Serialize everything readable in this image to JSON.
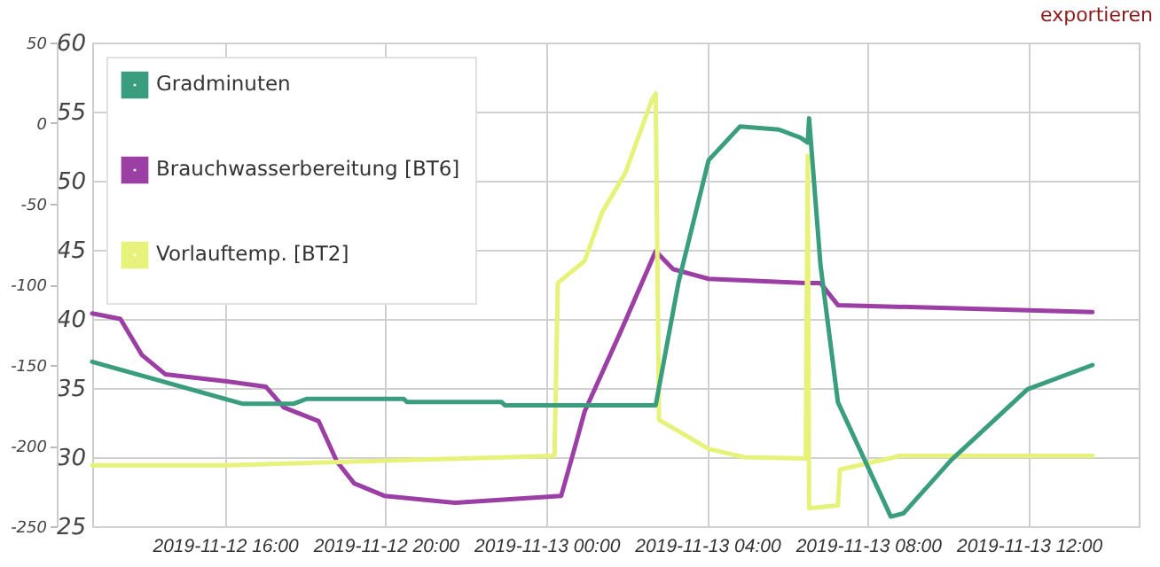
{
  "chart_data": {
    "type": "line",
    "annotations": [
      "exportieren"
    ],
    "xlim": [
      "2019-11-12T12:42",
      "2019-11-13T14:44"
    ],
    "xticks": [
      {
        "value": "2019-11-12T16:00",
        "label": "2019-11-12 16:00"
      },
      {
        "value": "2019-11-12T20:00",
        "label": "2019-11-12 20:00"
      },
      {
        "value": "2019-11-13T00:00",
        "label": "2019-11-13 00:00"
      },
      {
        "value": "2019-11-13T04:00",
        "label": "2019-11-13 04:00"
      },
      {
        "value": "2019-11-13T08:00",
        "label": "2019-11-13 08:00"
      },
      {
        "value": "2019-11-13T12:00",
        "label": "2019-11-13 12:00"
      }
    ],
    "ylim": [
      25,
      60
    ],
    "yticks": [
      25,
      30,
      35,
      40,
      45,
      50,
      55,
      60
    ],
    "y2lim": [
      -250,
      50
    ],
    "y2ticks": [
      -250,
      -200,
      -150,
      -100,
      -50,
      0,
      50
    ],
    "grid": true,
    "legend": "top left",
    "line_style": "solid",
    "series": [
      {
        "name": "Gradminuten",
        "color": "#3a9e7e",
        "axis": "y2",
        "x": [
          "2019-11-12T12:42",
          "2019-11-12T16:26",
          "2019-11-12T17:43",
          "2019-11-12T18:02",
          "2019-11-12T20:27",
          "2019-11-12T20:32",
          "2019-11-12T22:53",
          "2019-11-12T22:58",
          "2019-11-13T02:43",
          "2019-11-13T03:17",
          "2019-11-13T04:02",
          "2019-11-13T04:49",
          "2019-11-13T05:47",
          "2019-11-13T06:19",
          "2019-11-13T06:30",
          "2019-11-13T06:32",
          "2019-11-13T06:49",
          "2019-11-13T07:15",
          "2019-11-13T08:34",
          "2019-11-13T08:53",
          "2019-11-13T10:04",
          "2019-11-13T11:58",
          "2019-11-13T13:35"
        ],
        "values": [
          -148,
          -174,
          -174,
          -171,
          -171,
          -173,
          -173,
          -175,
          -175,
          -99,
          -23,
          -2,
          -4,
          -9,
          -12,
          3,
          -88,
          -173,
          -244,
          -242,
          -209,
          -165,
          -150
        ]
      },
      {
        "name": "Brauchwasserbereitung [BT6]",
        "color": "#9b3fa5",
        "x": [
          "2019-11-12T12:42",
          "2019-11-12T13:24",
          "2019-11-12T13:56",
          "2019-11-12T14:31",
          "2019-11-12T16:00",
          "2019-11-12T17:01",
          "2019-11-12T17:28",
          "2019-11-12T18:20",
          "2019-11-12T18:47",
          "2019-11-12T19:13",
          "2019-11-12T19:58",
          "2019-11-12T21:44",
          "2019-11-13T00:22",
          "2019-11-13T00:44",
          "2019-11-13T00:57",
          "2019-11-13T01:50",
          "2019-11-13T02:43",
          "2019-11-13T03:09",
          "2019-11-13T04:02",
          "2019-11-13T06:27",
          "2019-11-13T06:49",
          "2019-11-13T07:15",
          "2019-11-13T13:35"
        ],
        "values": [
          40.4,
          40.0,
          37.4,
          36.0,
          35.5,
          35.1,
          33.6,
          32.6,
          29.7,
          28.1,
          27.2,
          26.7,
          27.2,
          31.0,
          33.3,
          39.0,
          44.9,
          43.6,
          42.9,
          42.6,
          42.6,
          41.0,
          40.5
        ]
      },
      {
        "name": "Vorlauftemp. [BT2]",
        "color": "#e6f27a",
        "x": [
          "2019-11-12T12:42",
          "2019-11-12T16:00",
          "2019-11-13T00:12",
          "2019-11-13T00:17",
          "2019-11-13T00:57",
          "2019-11-13T01:23",
          "2019-11-13T01:58",
          "2019-11-13T02:37",
          "2019-11-13T02:43",
          "2019-11-13T02:48",
          "2019-11-13T04:02",
          "2019-11-13T04:55",
          "2019-11-13T06:27",
          "2019-11-13T06:30",
          "2019-11-13T06:32",
          "2019-11-13T07:15",
          "2019-11-13T07:18",
          "2019-11-13T08:40",
          "2019-11-13T08:47",
          "2019-11-13T13:35"
        ],
        "values": [
          29.4,
          29.4,
          30.1,
          42.6,
          44.2,
          47.7,
          50.6,
          55.8,
          56.3,
          32.7,
          30.6,
          30.0,
          29.9,
          51.8,
          26.3,
          26.5,
          29.1,
          30.0,
          30.1,
          30.1
        ]
      }
    ]
  }
}
